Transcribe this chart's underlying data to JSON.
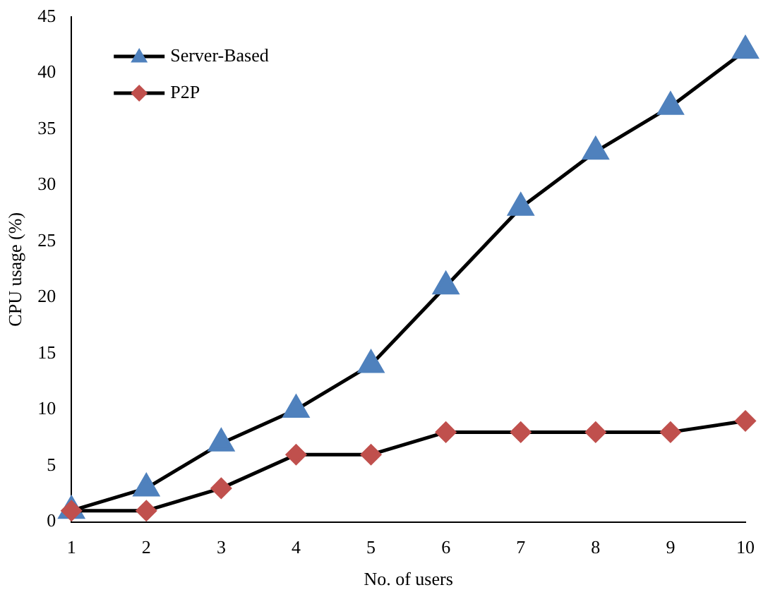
{
  "chart_data": {
    "type": "line",
    "xlabel": "No. of users",
    "ylabel": "CPU usage (%)",
    "categories": [
      "1",
      "2",
      "3",
      "4",
      "5",
      "6",
      "7",
      "8",
      "9",
      "10"
    ],
    "series": [
      {
        "name": "Server-Based",
        "color": "#4f81bd",
        "marker": "triangle",
        "values": [
          1,
          3,
          7,
          10,
          14,
          21,
          28,
          33,
          37,
          42
        ]
      },
      {
        "name": "P2P",
        "color": "#c0504d",
        "marker": "diamond",
        "values": [
          1,
          1,
          3,
          6,
          6,
          8,
          8,
          8,
          8,
          9
        ]
      }
    ],
    "ylim": [
      0,
      45
    ],
    "yticks": [
      0,
      5,
      10,
      15,
      20,
      25,
      30,
      35,
      40,
      45
    ],
    "grid": false,
    "legend": "top left",
    "line_style": "solid"
  }
}
